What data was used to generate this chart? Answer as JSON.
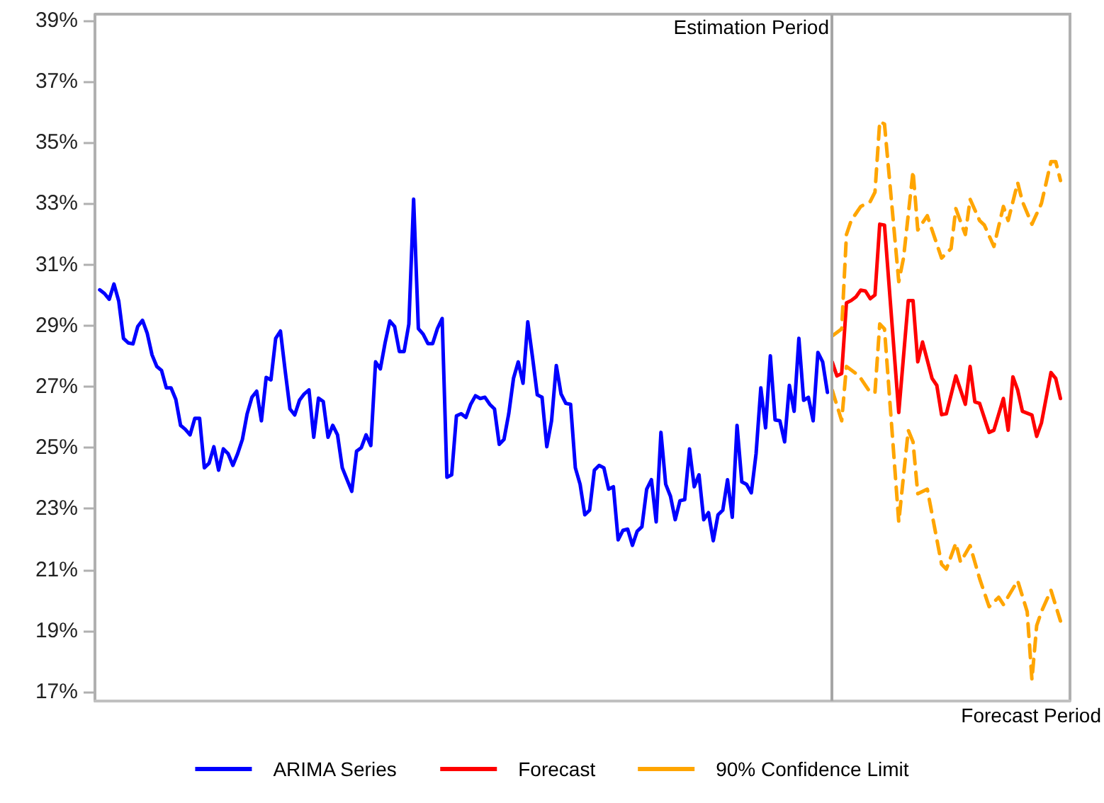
{
  "chart_data": {
    "type": "line",
    "categories": [
      null,
      null,
      null,
      null,
      null,
      null,
      null,
      null,
      null,
      null,
      null,
      null,
      null,
      null,
      null,
      null,
      null,
      null,
      null,
      null,
      null,
      null,
      null,
      null,
      null,
      null,
      null,
      null,
      null,
      null,
      null,
      null,
      null,
      null,
      null,
      null,
      null,
      null,
      null,
      null,
      null,
      null,
      null,
      null,
      null,
      null,
      null,
      null,
      null,
      null,
      null,
      null,
      null,
      null,
      null,
      null,
      null,
      null,
      null,
      null,
      null,
      null,
      null,
      null,
      null,
      null,
      null,
      null,
      null,
      null,
      null,
      null,
      null,
      null,
      null,
      null,
      null,
      null,
      null,
      null,
      null,
      null,
      null,
      null,
      null,
      null,
      null,
      null,
      null,
      null,
      null,
      null,
      null,
      null,
      null,
      null,
      null,
      null,
      null,
      null,
      null,
      null,
      null,
      null,
      null,
      null,
      null,
      null,
      null,
      null,
      null,
      null,
      null,
      null,
      null,
      null,
      null,
      null,
      null,
      null,
      null,
      null,
      null,
      null,
      null,
      null,
      null,
      null,
      null,
      null,
      null,
      null,
      null,
      null,
      null,
      null,
      null,
      null,
      null,
      null,
      null,
      null,
      null,
      null,
      null,
      null,
      null,
      null,
      null,
      null,
      null,
      null,
      null,
      null,
      null,
      null,
      null,
      null,
      null,
      null,
      null,
      null,
      null,
      null,
      null,
      null,
      null,
      null,
      null,
      null,
      null,
      null,
      null,
      null,
      null,
      null,
      null,
      null,
      null,
      null,
      null,
      null,
      null,
      null,
      null,
      null,
      null,
      null,
      null,
      null,
      null,
      null,
      null,
      null,
      null,
      null,
      null,
      null,
      null,
      null,
      null,
      null,
      null,
      null,
      null,
      null
    ],
    "tick_labels": "y",
    "ylim": [
      16.7,
      39.2
    ],
    "yticks": [
      {
        "value": 17,
        "label": "17%"
      },
      {
        "value": 19,
        "label": "19%"
      },
      {
        "value": 21,
        "label": "21%"
      },
      {
        "value": 23,
        "label": "23%"
      },
      {
        "value": 25,
        "label": "25%"
      },
      {
        "value": 27,
        "label": "27%"
      },
      {
        "value": 29,
        "label": "29%"
      },
      {
        "value": 31,
        "label": "31%"
      },
      {
        "value": 33,
        "label": "33%"
      },
      {
        "value": 35,
        "label": "35%"
      },
      {
        "value": 37,
        "label": "37%"
      },
      {
        "value": 39,
        "label": "39%"
      }
    ],
    "grid": false,
    "legend": "bottom",
    "series": [
      {
        "name": "ARIMA Series",
        "color": "#0000ff",
        "line_style": "solid",
        "values": [
          null,
          30.17,
          30.05,
          29.86,
          30.36,
          29.8,
          28.58,
          28.43,
          28.4,
          28.97,
          29.17,
          28.74,
          28.04,
          27.66,
          27.53,
          26.96,
          26.96,
          26.58,
          25.73,
          25.6,
          25.42,
          25.96,
          25.96,
          24.34,
          24.49,
          25.03,
          24.26,
          24.96,
          24.8,
          24.42,
          24.8,
          25.27,
          26.11,
          26.65,
          26.85,
          25.88,
          27.3,
          27.22,
          28.58,
          28.82,
          27.51,
          26.27,
          26.07,
          26.55,
          26.76,
          26.89,
          25.34,
          26.62,
          26.51,
          25.34,
          25.73,
          25.42,
          24.34,
          23.95,
          23.57,
          24.88,
          25.0,
          25.42,
          25.07,
          27.81,
          27.58,
          28.43,
          29.15,
          28.97,
          28.15,
          28.15,
          29.05,
          33.14,
          28.9,
          28.72,
          28.41,
          28.41,
          28.9,
          29.23,
          24.03,
          24.11,
          26.04,
          26.11,
          25.99,
          26.42,
          26.7,
          26.61,
          26.65,
          26.42,
          26.27,
          25.11,
          25.27,
          26.11,
          27.27,
          27.81,
          27.11,
          29.12,
          27.96,
          26.73,
          26.65,
          25.03,
          25.88,
          27.69,
          26.76,
          26.45,
          26.42,
          24.34,
          23.8,
          22.8,
          22.95,
          24.26,
          24.42,
          24.34,
          23.64,
          23.72,
          21.98,
          22.29,
          22.33,
          21.8,
          22.26,
          22.41,
          23.64,
          23.95,
          22.57,
          25.5,
          23.8,
          23.41,
          22.64,
          23.26,
          23.3,
          24.96,
          23.72,
          24.11,
          22.64,
          22.87,
          21.95,
          22.8,
          22.95,
          23.95,
          22.72,
          25.73,
          23.88,
          23.8,
          23.52,
          24.8,
          26.96,
          25.65,
          28.01,
          25.91,
          25.88,
          25.19,
          27.04,
          26.19,
          28.58,
          26.55,
          26.65,
          25.88,
          28.12,
          27.81,
          26.81,
          null,
          null,
          null,
          null,
          null,
          null,
          null,
          null,
          null,
          null,
          null,
          null,
          null,
          null,
          null,
          null,
          null,
          null,
          null,
          null,
          null,
          null,
          null,
          null,
          null,
          null,
          null,
          null,
          null,
          null,
          null,
          null,
          null,
          null,
          null,
          null,
          null,
          null,
          null,
          null,
          null,
          null,
          null,
          null,
          null,
          null,
          null,
          null,
          null,
          null,
          null
        ]
      },
      {
        "name": "Forecast",
        "color": "#ff0000",
        "line_style": "solid",
        "values": [
          null,
          null,
          null,
          null,
          null,
          null,
          null,
          null,
          null,
          null,
          null,
          null,
          null,
          null,
          null,
          null,
          null,
          null,
          null,
          null,
          null,
          null,
          null,
          null,
          null,
          null,
          null,
          null,
          null,
          null,
          null,
          null,
          null,
          null,
          null,
          null,
          null,
          null,
          null,
          null,
          null,
          null,
          null,
          null,
          null,
          null,
          null,
          null,
          null,
          null,
          null,
          null,
          null,
          null,
          null,
          null,
          null,
          null,
          null,
          null,
          null,
          null,
          null,
          null,
          null,
          null,
          null,
          null,
          null,
          null,
          null,
          null,
          null,
          null,
          null,
          null,
          null,
          null,
          null,
          null,
          null,
          null,
          null,
          null,
          null,
          null,
          null,
          null,
          null,
          null,
          null,
          null,
          null,
          null,
          null,
          null,
          null,
          null,
          null,
          null,
          null,
          null,
          null,
          null,
          null,
          null,
          null,
          null,
          null,
          null,
          null,
          null,
          null,
          null,
          null,
          null,
          null,
          null,
          null,
          null,
          null,
          null,
          null,
          null,
          null,
          null,
          null,
          null,
          null,
          null,
          null,
          null,
          null,
          null,
          null,
          null,
          null,
          null,
          null,
          null,
          null,
          null,
          null,
          null,
          null,
          null,
          null,
          null,
          null,
          null,
          null,
          null,
          null,
          null,
          null,
          27.81,
          27.35,
          27.43,
          29.74,
          29.82,
          29.94,
          30.16,
          30.13,
          29.88,
          30.0,
          32.32,
          32.29,
          null,
          null,
          26.15,
          null,
          29.82,
          29.82,
          27.81,
          28.46,
          null,
          27.27,
          27.04,
          26.08,
          26.11,
          null,
          27.35,
          null,
          26.42,
          27.66,
          26.5,
          26.45,
          null,
          25.5,
          25.57,
          null,
          26.61,
          25.57,
          27.32,
          26.89,
          26.19,
          null,
          26.07,
          25.37,
          25.81,
          null,
          27.46,
          27.27,
          26.61,
          null,
          null
        ]
      },
      {
        "name": "90% Confidence Limit",
        "color": "#ffa500",
        "line_style": "dashed",
        "values": [
          null,
          null,
          null,
          null,
          null,
          null,
          null,
          null,
          null,
          null,
          null,
          null,
          null,
          null,
          null,
          null,
          null,
          null,
          null,
          null,
          null,
          null,
          null,
          null,
          null,
          null,
          null,
          null,
          null,
          null,
          null,
          null,
          null,
          null,
          null,
          null,
          null,
          null,
          null,
          null,
          null,
          null,
          null,
          null,
          null,
          null,
          null,
          null,
          null,
          null,
          null,
          null,
          null,
          null,
          null,
          null,
          null,
          null,
          null,
          null,
          null,
          null,
          null,
          null,
          null,
          null,
          null,
          null,
          null,
          null,
          null,
          null,
          null,
          null,
          null,
          null,
          null,
          null,
          null,
          null,
          null,
          null,
          null,
          null,
          null,
          null,
          null,
          null,
          null,
          null,
          null,
          null,
          null,
          null,
          null,
          null,
          null,
          null,
          null,
          null,
          null,
          null,
          null,
          null,
          null,
          null,
          null,
          null,
          null,
          null,
          null,
          null,
          null,
          null,
          null,
          null,
          null,
          null,
          null,
          null,
          null,
          null,
          null,
          null,
          null,
          null,
          null,
          null,
          null,
          null,
          null,
          null,
          null,
          null,
          null,
          null,
          null,
          null,
          null,
          null,
          null,
          null,
          null,
          null,
          null,
          null,
          null,
          null,
          null,
          null,
          null,
          null,
          null,
          null,
          null,
          28.66,
          null,
          28.89,
          31.98,
          32.44,
          null,
          32.9,
          null,
          33.06,
          33.37,
          35.68,
          35.6,
          null,
          null,
          30.44,
          31.21,
          null,
          34.06,
          32.13,
          null,
          32.6,
          32.13,
          null,
          31.21,
          null,
          31.52,
          32.83,
          null,
          31.98,
          33.14,
          null,
          32.44,
          32.29,
          null,
          31.59,
          null,
          32.9,
          32.44,
          null,
          33.68,
          33.06,
          null,
          32.32,
          null,
          33.0,
          null,
          34.37,
          34.37,
          33.75,
          null,
          null
        ]
      },
      {
        "color": "#ffa500",
        "line_style": "dashed",
        "values": [
          null,
          null,
          null,
          null,
          null,
          null,
          null,
          null,
          null,
          null,
          null,
          null,
          null,
          null,
          null,
          null,
          null,
          null,
          null,
          null,
          null,
          null,
          null,
          null,
          null,
          null,
          null,
          null,
          null,
          null,
          null,
          null,
          null,
          null,
          null,
          null,
          null,
          null,
          null,
          null,
          null,
          null,
          null,
          null,
          null,
          null,
          null,
          null,
          null,
          null,
          null,
          null,
          null,
          null,
          null,
          null,
          null,
          null,
          null,
          null,
          null,
          null,
          null,
          null,
          null,
          null,
          null,
          null,
          null,
          null,
          null,
          null,
          null,
          null,
          null,
          null,
          null,
          null,
          null,
          null,
          null,
          null,
          null,
          null,
          null,
          null,
          null,
          null,
          null,
          null,
          null,
          null,
          null,
          null,
          null,
          null,
          null,
          null,
          null,
          null,
          null,
          null,
          null,
          null,
          null,
          null,
          null,
          null,
          null,
          null,
          null,
          null,
          null,
          null,
          null,
          null,
          null,
          null,
          null,
          null,
          null,
          null,
          null,
          null,
          null,
          null,
          null,
          null,
          null,
          null,
          null,
          null,
          null,
          null,
          null,
          null,
          null,
          null,
          null,
          null,
          null,
          null,
          null,
          null,
          null,
          null,
          null,
          null,
          null,
          null,
          null,
          null,
          null,
          null,
          null,
          26.89,
          null,
          25.88,
          27.66,
          null,
          27.43,
          27.27,
          null,
          26.81,
          26.81,
          29.05,
          28.89,
          null,
          null,
          22.57,
          null,
          25.57,
          25.19,
          23.49,
          null,
          23.64,
          null,
          null,
          21.18,
          21.02,
          null,
          21.87,
          21.25,
          null,
          21.79,
          null,
          20.71,
          null,
          19.79,
          null,
          20.1,
          19.86,
          null,
          null,
          20.64,
          null,
          19.63,
          17.4,
          19.17,
          19.63,
          null,
          20.33,
          null,
          19.32,
          null,
          null
        ]
      }
    ],
    "annotations": [
      "Estimation Period",
      "Forecast Period"
    ]
  }
}
